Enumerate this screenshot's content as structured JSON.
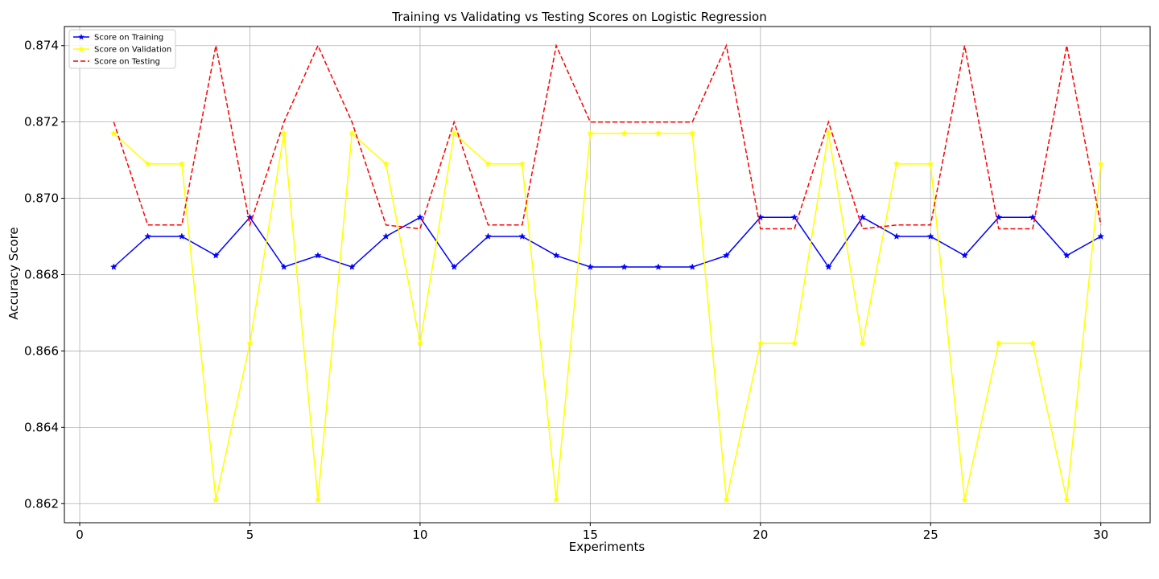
{
  "chart_data": {
    "type": "line",
    "title": "Training vs Validating vs Testing Scores on Logistic Regression",
    "xlabel": "Experiments",
    "ylabel": "Accuracy Score",
    "xlim": [
      -0.45,
      31.45
    ],
    "ylim": [
      0.8615,
      0.8745
    ],
    "x_ticks": [
      0,
      5,
      10,
      15,
      20,
      25,
      30
    ],
    "y_ticks": [
      0.862,
      0.864,
      0.866,
      0.868,
      0.87,
      0.872,
      0.874
    ],
    "y_tick_labels": [
      "0.862",
      "0.864",
      "0.866",
      "0.868",
      "0.870",
      "0.872",
      "0.874"
    ],
    "grid": true,
    "legend_position": "top-left",
    "x": [
      1,
      2,
      3,
      4,
      5,
      6,
      7,
      8,
      9,
      10,
      11,
      12,
      13,
      14,
      15,
      16,
      17,
      18,
      19,
      20,
      21,
      22,
      23,
      24,
      25,
      26,
      27,
      28,
      29,
      30
    ],
    "series": [
      {
        "name": "Score on Training",
        "color": "#0000ff",
        "style": "solid",
        "marker": "star",
        "values": [
          0.8682,
          0.869,
          0.869,
          0.8685,
          0.8695,
          0.8682,
          0.8685,
          0.8682,
          0.869,
          0.8695,
          0.8682,
          0.869,
          0.869,
          0.8685,
          0.8682,
          0.8682,
          0.8682,
          0.8682,
          0.8685,
          0.8695,
          0.8695,
          0.8682,
          0.8695,
          0.869,
          0.869,
          0.8685,
          0.8695,
          0.8695,
          0.8685,
          0.869
        ]
      },
      {
        "name": "Score on Validation",
        "color": "#ffff00",
        "style": "solid",
        "marker": "star",
        "values": [
          0.8717,
          0.8709,
          0.8709,
          0.8621,
          0.8662,
          0.8717,
          0.8621,
          0.8717,
          0.8709,
          0.8662,
          0.8717,
          0.8709,
          0.8709,
          0.8621,
          0.8717,
          0.8717,
          0.8717,
          0.8717,
          0.8621,
          0.8662,
          0.8662,
          0.8717,
          0.8662,
          0.8709,
          0.8709,
          0.8621,
          0.8662,
          0.8662,
          0.8621,
          0.8709
        ]
      },
      {
        "name": "Score on Testing",
        "color": "#ff0000",
        "style": "dashed",
        "marker": "none",
        "values": [
          0.872,
          0.8693,
          0.8693,
          0.874,
          0.8693,
          0.872,
          0.874,
          0.872,
          0.8693,
          0.8692,
          0.872,
          0.8693,
          0.8693,
          0.874,
          0.872,
          0.872,
          0.872,
          0.872,
          0.874,
          0.8692,
          0.8692,
          0.872,
          0.8692,
          0.8693,
          0.8693,
          0.874,
          0.8692,
          0.8692,
          0.874,
          0.8693
        ]
      }
    ]
  }
}
